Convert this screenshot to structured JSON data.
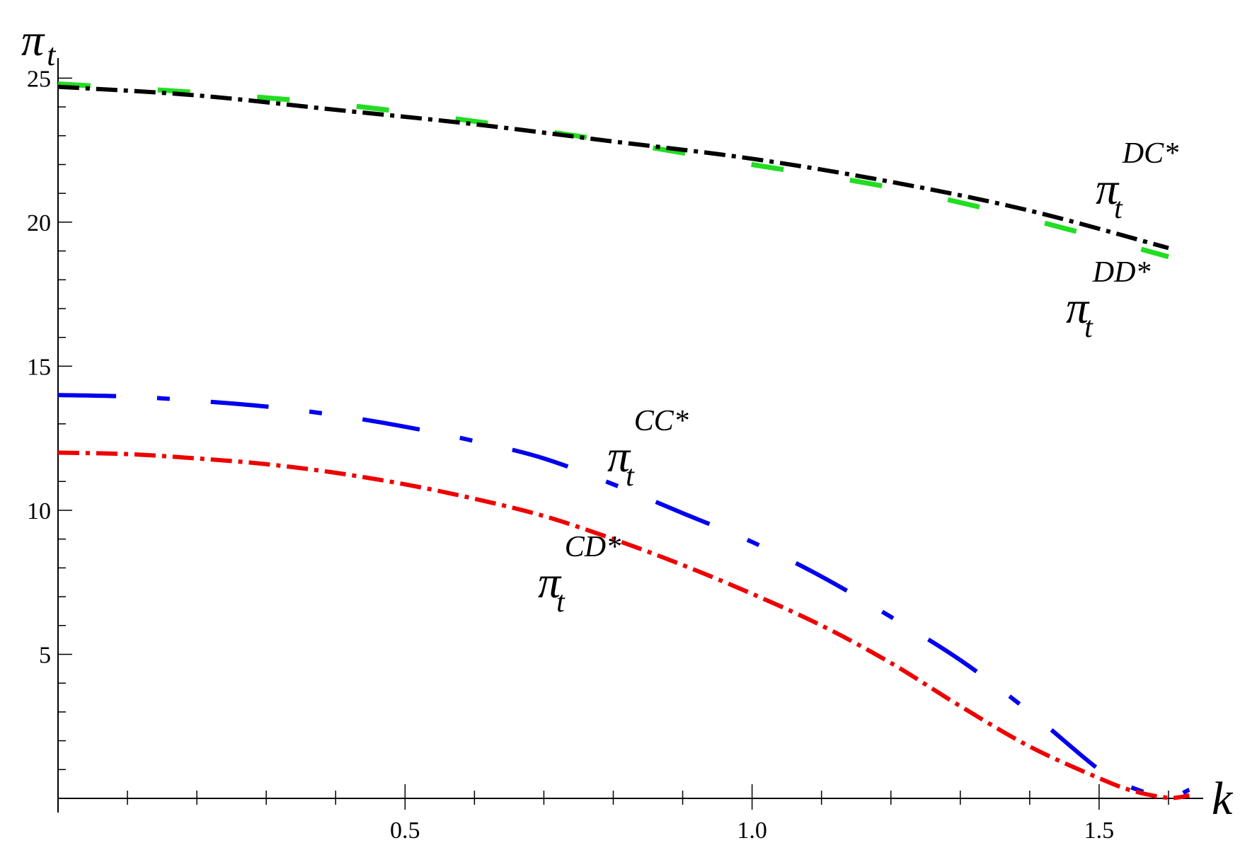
{
  "chart_data": {
    "type": "line",
    "title": "",
    "xlabel": "k",
    "ylabel": {
      "symbol": "π",
      "subscript": "t"
    },
    "xlim": [
      0,
      1.65
    ],
    "ylim": [
      0,
      25.5
    ],
    "x_ticks": [
      "0.5",
      "1.0",
      "1.5"
    ],
    "y_ticks": [
      "5",
      "10",
      "15",
      "20",
      "25"
    ],
    "grid": false,
    "series": [
      {
        "key": "DD",
        "label": {
          "symbol": "π",
          "subscript": "t",
          "superscript": "DD*"
        },
        "color": "#22dd22",
        "x": [
          0,
          0.2,
          0.4,
          0.6,
          0.8,
          1.0,
          1.2,
          1.4,
          1.6
        ],
        "y": [
          24.8,
          24.5,
          24.1,
          23.5,
          22.8,
          22.0,
          21.2,
          20.1,
          18.8
        ]
      },
      {
        "key": "DC",
        "label": {
          "symbol": "π",
          "subscript": "t",
          "superscript": "DC*"
        },
        "color": "#000000",
        "x": [
          0,
          0.2,
          0.4,
          0.6,
          0.8,
          1.0,
          1.2,
          1.4,
          1.6
        ],
        "y": [
          24.7,
          24.4,
          23.9,
          23.4,
          22.8,
          22.2,
          21.4,
          20.4,
          19.1
        ]
      },
      {
        "key": "CC",
        "label": {
          "symbol": "π",
          "subscript": "t",
          "superscript": "CC*"
        },
        "color": "#0000ee",
        "x": [
          0,
          0.1,
          0.2,
          0.3,
          0.4,
          0.5,
          0.6,
          0.7,
          0.8,
          0.9,
          1.0,
          1.1,
          1.2,
          1.3,
          1.4,
          1.5,
          1.55,
          1.6,
          1.63
        ],
        "y": [
          14.0,
          13.95,
          13.8,
          13.6,
          13.3,
          12.9,
          12.4,
          11.8,
          10.9,
          9.9,
          8.9,
          7.7,
          6.3,
          4.8,
          3.0,
          1.0,
          0.35,
          0.05,
          0.3
        ]
      },
      {
        "key": "CD",
        "label": {
          "symbol": "π",
          "subscript": "t",
          "superscript": "CD*"
        },
        "color": "#ee0000",
        "x": [
          0,
          0.1,
          0.2,
          0.3,
          0.4,
          0.5,
          0.6,
          0.7,
          0.8,
          0.9,
          1.0,
          1.1,
          1.2,
          1.3,
          1.4,
          1.5,
          1.55,
          1.6,
          1.63
        ],
        "y": [
          12.0,
          11.95,
          11.8,
          11.6,
          11.3,
          10.9,
          10.4,
          9.8,
          9.0,
          8.1,
          7.1,
          6.0,
          4.7,
          3.2,
          1.8,
          0.7,
          0.25,
          0.02,
          0.1
        ]
      }
    ]
  }
}
